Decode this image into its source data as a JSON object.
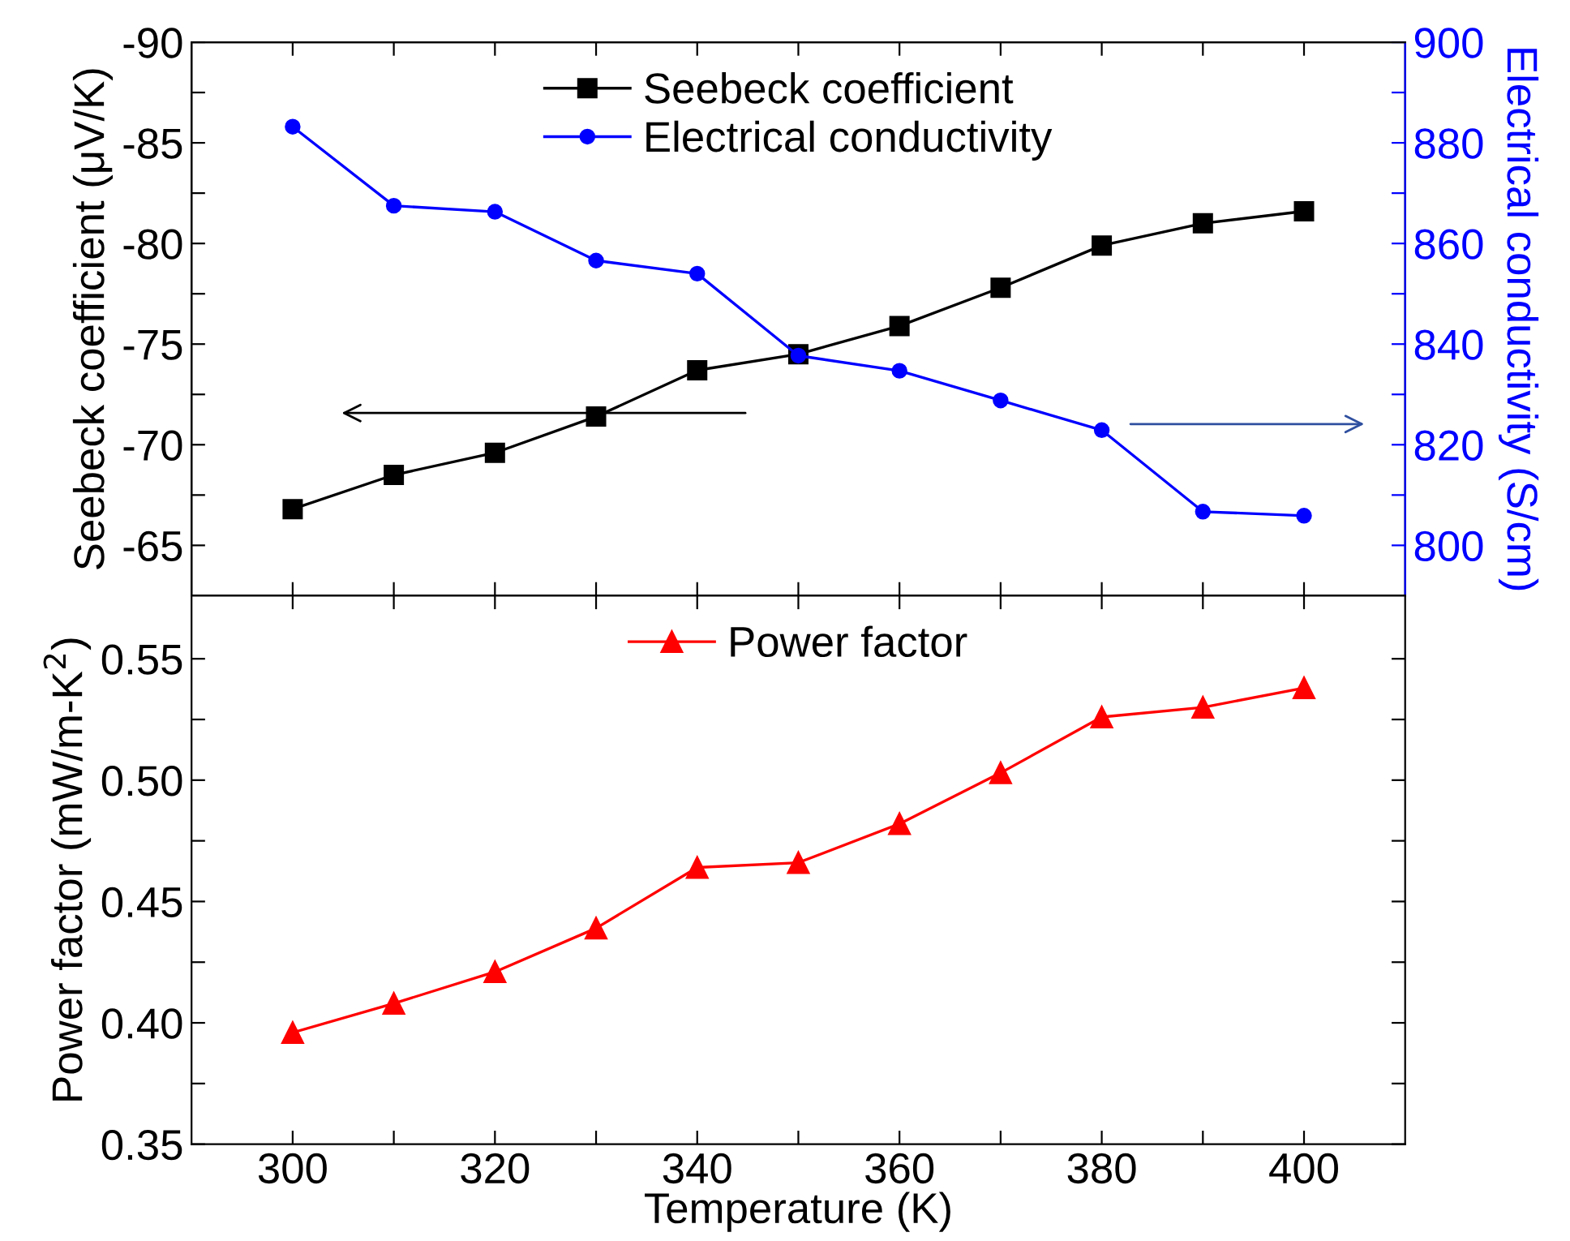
{
  "chart_data": [
    {
      "type": "line",
      "ylabel": "Seebeck coefficient (μV/K)",
      "y2label": "Electrical conductivity (S/cm)",
      "x": [
        300,
        310,
        320,
        330,
        340,
        350,
        360,
        370,
        380,
        390,
        400
      ],
      "series": [
        {
          "name": "Seebeck coefficient",
          "color": "#000000",
          "marker": "square",
          "values": [
            -66.8,
            -68.5,
            -69.6,
            -71.4,
            -73.7,
            -74.5,
            -75.9,
            -77.8,
            -79.9,
            -81.0,
            -81.6
          ]
        },
        {
          "name": "Electrical conductivity",
          "color": "#0000ff",
          "marker": "circle",
          "axis": "y2",
          "values": [
            883.2,
            867.5,
            866.3,
            856.6,
            854.0,
            837.7,
            834.7,
            828.8,
            822.9,
            806.7,
            805.9
          ]
        }
      ],
      "xlim": [
        290,
        410
      ],
      "xticks": [
        300,
        {
          "value": 310,
          "label": null
        },
        320,
        {
          "value": 330,
          "label": null
        },
        340,
        {
          "value": 350,
          "label": null
        },
        360,
        {
          "value": 370,
          "label": null
        },
        380,
        {
          "value": 390,
          "label": null
        },
        400
      ],
      "ylim": [
        -62.5,
        -90
      ],
      "yticks": [
        -90,
        {
          "value": -87.5,
          "label": null
        },
        -85,
        {
          "value": -82.5,
          "label": null
        },
        -80,
        {
          "value": -77.5,
          "label": null
        },
        -75,
        {
          "value": -72.5,
          "label": null
        },
        -70,
        {
          "value": -67.5,
          "label": null
        },
        -65
      ],
      "y2lim": [
        790,
        900
      ],
      "y2ticks": [
        800,
        {
          "value": 810,
          "label": null
        },
        820,
        {
          "value": 830,
          "label": null
        },
        840,
        {
          "value": 850,
          "label": null
        },
        860,
        {
          "value": 870,
          "label": null
        },
        880,
        {
          "value": 890,
          "label": null
        },
        900
      ],
      "tick_labels": "y",
      "legend": "top",
      "grid": false,
      "line_style": "solid"
    },
    {
      "type": "line",
      "xlabel": "Temperature (K)",
      "ylabel": "Power factor (mW/m-K$^{2}$)",
      "x": [
        300,
        310,
        320,
        330,
        340,
        350,
        360,
        370,
        380,
        390,
        400
      ],
      "series": [
        {
          "name": "Power factor",
          "color": "#ff0000",
          "marker": "triangle",
          "values": [
            0.396,
            0.408,
            0.421,
            0.439,
            0.464,
            0.466,
            0.482,
            0.503,
            0.526,
            0.53,
            0.538
          ]
        }
      ],
      "xlim": [
        290,
        410
      ],
      "xticks": [
        300,
        {
          "value": 310,
          "label": null
        },
        320,
        {
          "value": 330,
          "label": null
        },
        340,
        {
          "value": 350,
          "label": null
        },
        360,
        {
          "value": 370,
          "label": null
        },
        380,
        {
          "value": 390,
          "label": null
        },
        400
      ],
      "ylim": [
        0.35,
        0.576
      ],
      "yticks": [
        0.35,
        {
          "value": 0.375,
          "label": null
        },
        {
          "value": 0.4,
          "label": "0.40"
        },
        {
          "value": 0.425,
          "label": null
        },
        0.45,
        {
          "value": 0.475,
          "label": null
        },
        {
          "value": 0.5,
          "label": "0.50"
        },
        {
          "value": 0.525,
          "label": null
        },
        0.55
      ],
      "legend": "top",
      "grid": false,
      "line_style": "solid"
    }
  ]
}
